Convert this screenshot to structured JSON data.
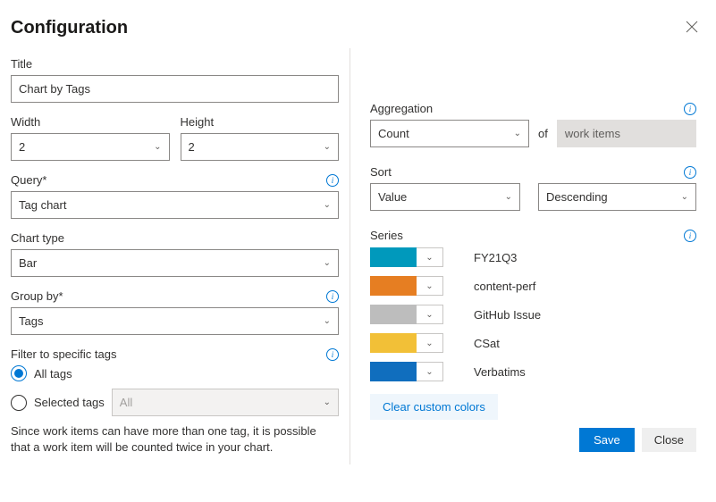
{
  "panel": {
    "title": "Configuration"
  },
  "left": {
    "title_label": "Title",
    "title_value": "Chart by Tags",
    "width_label": "Width",
    "width_value": "2",
    "height_label": "Height",
    "height_value": "2",
    "query_label": "Query*",
    "query_value": "Tag chart",
    "chart_type_label": "Chart type",
    "chart_type_value": "Bar",
    "group_by_label": "Group by*",
    "group_by_value": "Tags",
    "filter_label": "Filter to specific tags",
    "radio_all": "All tags",
    "radio_selected": "Selected tags",
    "selected_tags_value": "All",
    "help_text": "Since work items can have more than one tag, it is possible that a work item will be counted twice in your chart."
  },
  "right": {
    "aggregation_label": "Aggregation",
    "aggregation_value": "Count",
    "aggregation_of": "of",
    "aggregation_target": "work items",
    "sort_label": "Sort",
    "sort_by_value": "Value",
    "sort_dir_value": "Descending",
    "series_label": "Series",
    "series": [
      {
        "color": "#0099bc",
        "label": "FY21Q3"
      },
      {
        "color": "#e67e22",
        "label": "content-perf"
      },
      {
        "color": "#bdbdbd",
        "label": "GitHub Issue"
      },
      {
        "color": "#f2c037",
        "label": "CSat"
      },
      {
        "color": "#106ebe",
        "label": "Verbatims"
      }
    ],
    "clear_colors": "Clear custom colors"
  },
  "footer": {
    "save": "Save",
    "close": "Close"
  }
}
